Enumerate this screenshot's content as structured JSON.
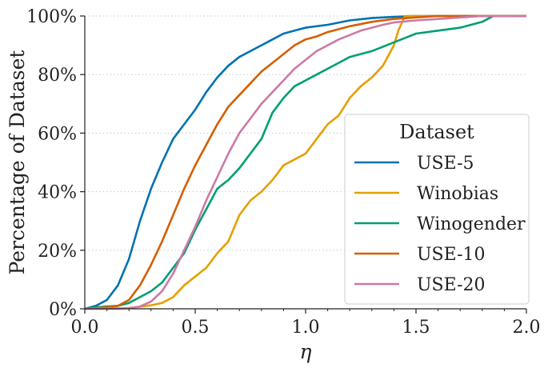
{
  "chart_data": {
    "type": "line",
    "xlabel": "η",
    "ylabel": "Percentage of Dataset",
    "xlim": [
      0.0,
      2.0
    ],
    "ylim": [
      0,
      100
    ],
    "x_ticks": [
      "0.0",
      "0.5",
      "1.0",
      "1.5",
      "2.0"
    ],
    "y_ticks": [
      "0%",
      "20%",
      "40%",
      "60%",
      "80%",
      "100%"
    ],
    "grid": "horizontal dotted",
    "legend": {
      "title": "Dataset",
      "position": "lower-right"
    },
    "series": [
      {
        "name": "USE-5",
        "color": "#0072b2",
        "points": [
          [
            0.0,
            0
          ],
          [
            0.05,
            1
          ],
          [
            0.1,
            3
          ],
          [
            0.15,
            8
          ],
          [
            0.2,
            17
          ],
          [
            0.25,
            30
          ],
          [
            0.3,
            41
          ],
          [
            0.35,
            50
          ],
          [
            0.4,
            58
          ],
          [
            0.45,
            63
          ],
          [
            0.5,
            68
          ],
          [
            0.55,
            74
          ],
          [
            0.6,
            79
          ],
          [
            0.65,
            83
          ],
          [
            0.7,
            86
          ],
          [
            0.75,
            88
          ],
          [
            0.8,
            90
          ],
          [
            0.85,
            92
          ],
          [
            0.9,
            94
          ],
          [
            0.95,
            95
          ],
          [
            1.0,
            96
          ],
          [
            1.1,
            97
          ],
          [
            1.2,
            98.5
          ],
          [
            1.3,
            99.3
          ],
          [
            1.4,
            99.7
          ],
          [
            1.5,
            100
          ],
          [
            2.0,
            100
          ]
        ]
      },
      {
        "name": "Winobias",
        "color": "#e69f00",
        "points": [
          [
            0.0,
            0
          ],
          [
            0.15,
            0
          ],
          [
            0.2,
            0.3
          ],
          [
            0.25,
            0.7
          ],
          [
            0.3,
            1.2
          ],
          [
            0.35,
            2
          ],
          [
            0.4,
            4
          ],
          [
            0.45,
            8
          ],
          [
            0.5,
            11
          ],
          [
            0.55,
            14
          ],
          [
            0.6,
            19
          ],
          [
            0.65,
            23
          ],
          [
            0.7,
            32
          ],
          [
            0.75,
            37
          ],
          [
            0.8,
            40
          ],
          [
            0.85,
            44
          ],
          [
            0.9,
            49
          ],
          [
            0.95,
            51
          ],
          [
            1.0,
            53
          ],
          [
            1.05,
            58
          ],
          [
            1.1,
            63
          ],
          [
            1.15,
            66
          ],
          [
            1.2,
            72
          ],
          [
            1.25,
            76
          ],
          [
            1.3,
            79
          ],
          [
            1.35,
            83
          ],
          [
            1.4,
            90
          ],
          [
            1.42,
            95
          ],
          [
            1.45,
            100
          ],
          [
            2.0,
            100
          ]
        ]
      },
      {
        "name": "Winogender",
        "color": "#009e73",
        "points": [
          [
            0.0,
            0
          ],
          [
            0.05,
            0.5
          ],
          [
            0.1,
            0.8
          ],
          [
            0.15,
            1
          ],
          [
            0.2,
            2
          ],
          [
            0.25,
            4
          ],
          [
            0.3,
            6
          ],
          [
            0.35,
            9
          ],
          [
            0.4,
            14
          ],
          [
            0.45,
            19
          ],
          [
            0.5,
            27
          ],
          [
            0.55,
            34
          ],
          [
            0.6,
            41
          ],
          [
            0.65,
            44
          ],
          [
            0.7,
            48
          ],
          [
            0.75,
            53
          ],
          [
            0.8,
            58
          ],
          [
            0.85,
            67
          ],
          [
            0.9,
            72
          ],
          [
            0.95,
            76
          ],
          [
            1.0,
            78
          ],
          [
            1.05,
            80
          ],
          [
            1.1,
            82
          ],
          [
            1.15,
            84
          ],
          [
            1.2,
            86
          ],
          [
            1.3,
            88
          ],
          [
            1.4,
            91
          ],
          [
            1.5,
            94
          ],
          [
            1.6,
            95
          ],
          [
            1.7,
            96
          ],
          [
            1.8,
            98
          ],
          [
            1.85,
            100
          ],
          [
            2.0,
            100
          ]
        ]
      },
      {
        "name": "USE-10",
        "color": "#d55e00",
        "points": [
          [
            0.0,
            0
          ],
          [
            0.1,
            0.5
          ],
          [
            0.15,
            1
          ],
          [
            0.2,
            3
          ],
          [
            0.25,
            8
          ],
          [
            0.3,
            15
          ],
          [
            0.35,
            23
          ],
          [
            0.4,
            32
          ],
          [
            0.45,
            41
          ],
          [
            0.5,
            49
          ],
          [
            0.55,
            56
          ],
          [
            0.6,
            63
          ],
          [
            0.65,
            69
          ],
          [
            0.7,
            73
          ],
          [
            0.75,
            77
          ],
          [
            0.8,
            81
          ],
          [
            0.85,
            84
          ],
          [
            0.9,
            87
          ],
          [
            0.95,
            90
          ],
          [
            1.0,
            92
          ],
          [
            1.05,
            93
          ],
          [
            1.1,
            94.5
          ],
          [
            1.15,
            95.5
          ],
          [
            1.2,
            96.5
          ],
          [
            1.3,
            98
          ],
          [
            1.4,
            99
          ],
          [
            1.5,
            99.5
          ],
          [
            1.6,
            100
          ],
          [
            2.0,
            100
          ]
        ]
      },
      {
        "name": "USE-20",
        "color": "#cc79a7",
        "points": [
          [
            0.0,
            0
          ],
          [
            0.2,
            0.2
          ],
          [
            0.25,
            0.8
          ],
          [
            0.3,
            2.5
          ],
          [
            0.35,
            6
          ],
          [
            0.4,
            12
          ],
          [
            0.45,
            20
          ],
          [
            0.5,
            28
          ],
          [
            0.55,
            37
          ],
          [
            0.6,
            45
          ],
          [
            0.65,
            53
          ],
          [
            0.7,
            60
          ],
          [
            0.75,
            65
          ],
          [
            0.8,
            70
          ],
          [
            0.85,
            74
          ],
          [
            0.9,
            78
          ],
          [
            0.95,
            82
          ],
          [
            1.0,
            85
          ],
          [
            1.05,
            88
          ],
          [
            1.1,
            90
          ],
          [
            1.15,
            92
          ],
          [
            1.2,
            93.5
          ],
          [
            1.25,
            95
          ],
          [
            1.3,
            96
          ],
          [
            1.35,
            97
          ],
          [
            1.4,
            97.8
          ],
          [
            1.5,
            98.5
          ],
          [
            1.6,
            99
          ],
          [
            1.7,
            99.5
          ],
          [
            1.8,
            100
          ],
          [
            2.0,
            100
          ]
        ]
      }
    ]
  }
}
